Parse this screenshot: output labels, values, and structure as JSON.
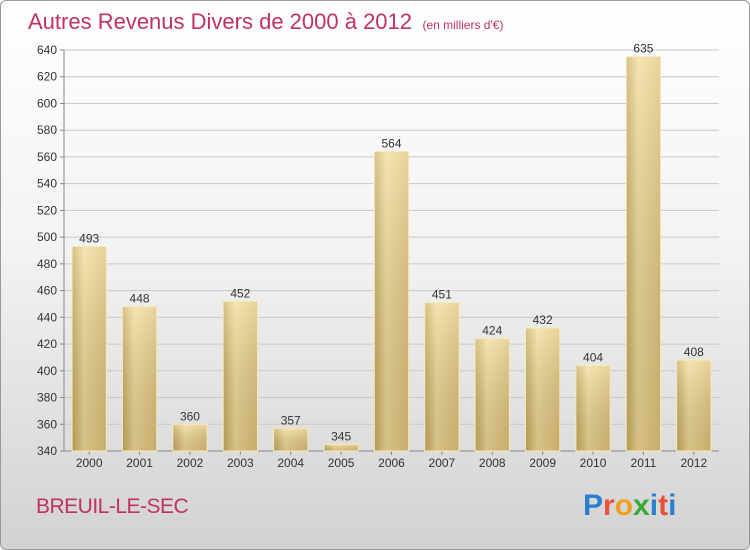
{
  "page": {
    "title": "Autres Revenus Divers de 2000 à 2012",
    "title_unit": "(en milliers d'€)",
    "commune": "BREUIL-LE-SEC",
    "logo": {
      "text": "Proxiti",
      "letter_colors": [
        "#2a7fd0",
        "#e8503a",
        "#f0a020",
        "#3aa83a",
        "#2a7fd0",
        "#e8503a",
        "#2a7fd0"
      ]
    }
  },
  "chart_data": {
    "type": "bar",
    "title": "Autres Revenus Divers de 2000 à 2012",
    "subtitle": "(en milliers d'€)",
    "xlabel": "",
    "ylabel": "",
    "categories": [
      "2000",
      "2001",
      "2002",
      "2003",
      "2004",
      "2005",
      "2006",
      "2007",
      "2008",
      "2009",
      "2010",
      "2011",
      "2012"
    ],
    "values": [
      493,
      448,
      360,
      452,
      357,
      345,
      564,
      451,
      424,
      432,
      404,
      635,
      408
    ],
    "ylim": [
      340,
      640
    ],
    "yticks": [
      340,
      360,
      380,
      400,
      420,
      440,
      460,
      480,
      500,
      520,
      540,
      560,
      580,
      600,
      620,
      640
    ],
    "grid": true,
    "data_labels": true,
    "bar_color": "#e6cc80",
    "colors": {
      "grid": "#c8c8c8",
      "axis": "#888888",
      "text": "#333333",
      "accent": "#c0325f"
    }
  }
}
